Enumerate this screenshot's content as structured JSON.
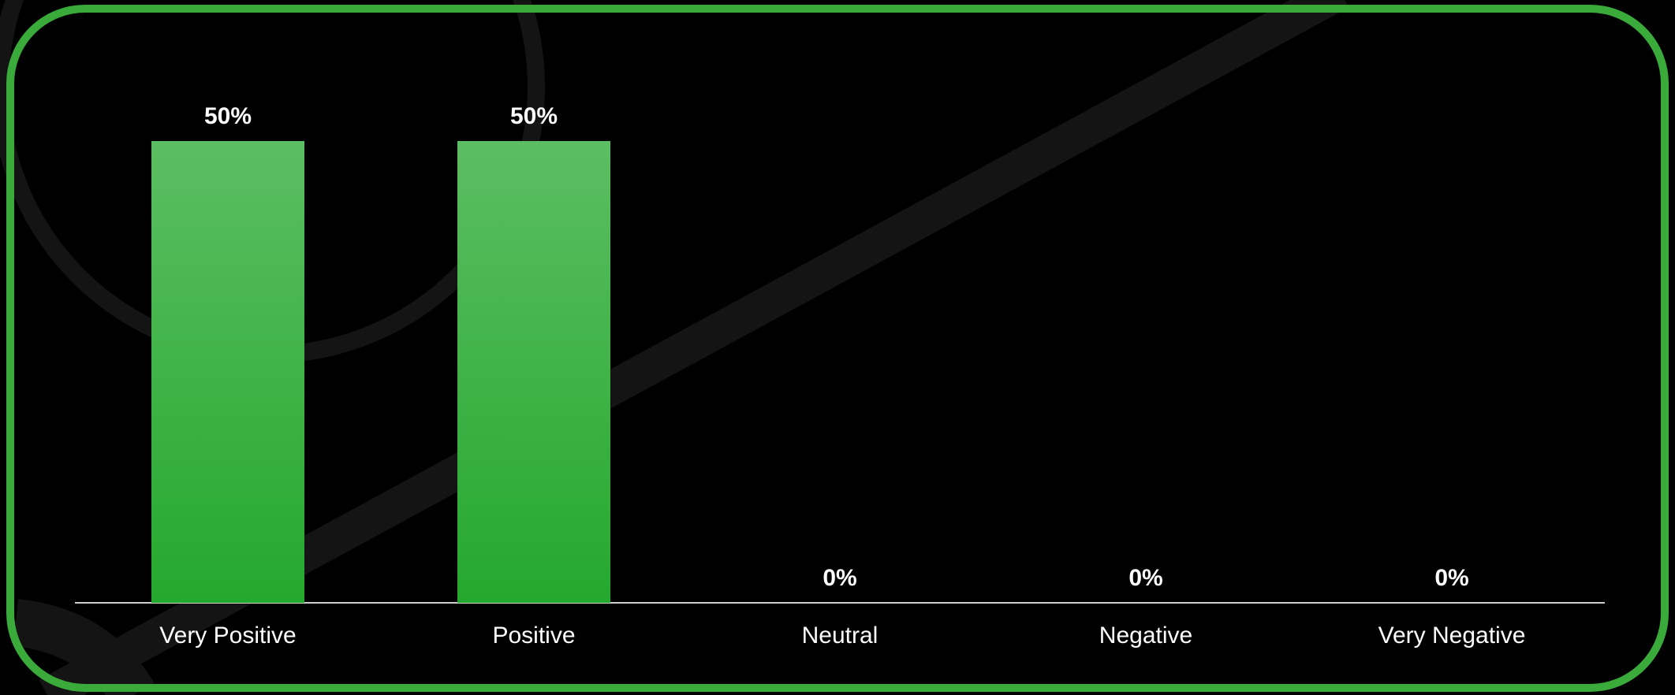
{
  "chart_data": {
    "type": "bar",
    "categories": [
      "Very Positive",
      "Positive",
      "Neutral",
      "Negative",
      "Very Negative"
    ],
    "values": [
      50,
      50,
      0,
      0,
      0
    ],
    "value_labels": [
      "50%",
      "50%",
      "0%",
      "0%",
      "0%"
    ],
    "color": "#25a82e"
  }
}
